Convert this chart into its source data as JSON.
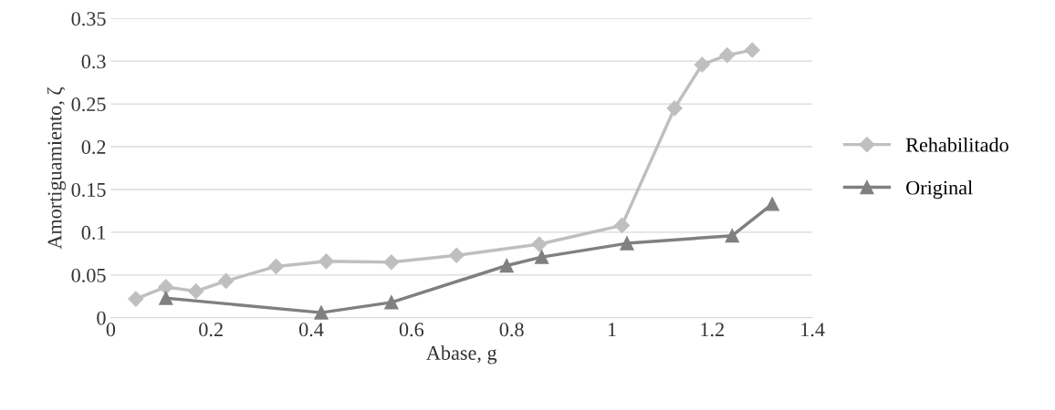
{
  "chart_data": {
    "type": "line",
    "xlabel": "Abase, g",
    "ylabel": "Amortiguamiento, ζ",
    "xlim": [
      0,
      1.4
    ],
    "xticks": [
      0,
      0.2,
      0.4,
      0.6,
      0.8,
      1,
      1.2,
      1.4
    ],
    "ylim": [
      0,
      0.35
    ],
    "yticks": [
      0,
      0.05,
      0.1,
      0.15,
      0.2,
      0.25,
      0.3,
      0.35
    ],
    "grid": "y",
    "legend": "right",
    "series": [
      {
        "name": "Rehabilitado",
        "color": "#bfbfbf",
        "marker": "diamond",
        "x": [
          0.05,
          0.11,
          0.17,
          0.23,
          0.33,
          0.43,
          0.56,
          0.69,
          0.855,
          1.02,
          1.125,
          1.18,
          1.23,
          1.28
        ],
        "values": [
          0.022,
          0.036,
          0.031,
          0.043,
          0.06,
          0.066,
          0.065,
          0.073,
          0.086,
          0.108,
          0.245,
          0.296,
          0.307,
          0.313
        ]
      },
      {
        "name": "Original",
        "color": "#808080",
        "marker": "triangle",
        "x": [
          0.11,
          0.42,
          0.56,
          0.79,
          0.86,
          1.03,
          1.24,
          1.32
        ],
        "values": [
          0.023,
          0.006,
          0.018,
          0.061,
          0.071,
          0.087,
          0.096,
          0.133
        ]
      }
    ]
  }
}
